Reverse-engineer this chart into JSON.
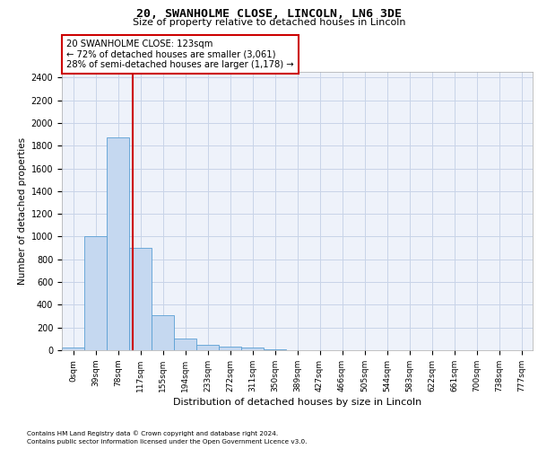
{
  "title_line1": "20, SWANHOLME CLOSE, LINCOLN, LN6 3DE",
  "title_line2": "Size of property relative to detached houses in Lincoln",
  "xlabel": "Distribution of detached houses by size in Lincoln",
  "ylabel": "Number of detached properties",
  "bin_labels": [
    "0sqm",
    "39sqm",
    "78sqm",
    "117sqm",
    "155sqm",
    "194sqm",
    "233sqm",
    "272sqm",
    "311sqm",
    "350sqm",
    "389sqm",
    "427sqm",
    "466sqm",
    "505sqm",
    "544sqm",
    "583sqm",
    "622sqm",
    "661sqm",
    "700sqm",
    "738sqm",
    "777sqm"
  ],
  "bar_values": [
    20,
    1000,
    1875,
    900,
    305,
    100,
    48,
    30,
    20,
    10,
    0,
    0,
    0,
    0,
    0,
    0,
    0,
    0,
    0,
    0,
    0
  ],
  "bar_color": "#c5d8f0",
  "bar_edgecolor": "#5a9fd4",
  "bar_linewidth": 0.6,
  "annotation_text_line1": "20 SWANHOLME CLOSE: 123sqm",
  "annotation_text_line2": "← 72% of detached houses are smaller (3,061)",
  "annotation_text_line3": "28% of semi-detached houses are larger (1,178) →",
  "red_color": "#cc0000",
  "annotation_box_facecolor": "#ffffff",
  "annotation_box_edgecolor": "#cc0000",
  "ylim": [
    0,
    2450
  ],
  "yticks": [
    0,
    200,
    400,
    600,
    800,
    1000,
    1200,
    1400,
    1600,
    1800,
    2000,
    2200,
    2400
  ],
  "grid_color": "#c8d4e8",
  "background_color": "#eef2fa",
  "footer_line1": "Contains HM Land Registry data © Crown copyright and database right 2024.",
  "footer_line2": "Contains public sector information licensed under the Open Government Licence v3.0."
}
